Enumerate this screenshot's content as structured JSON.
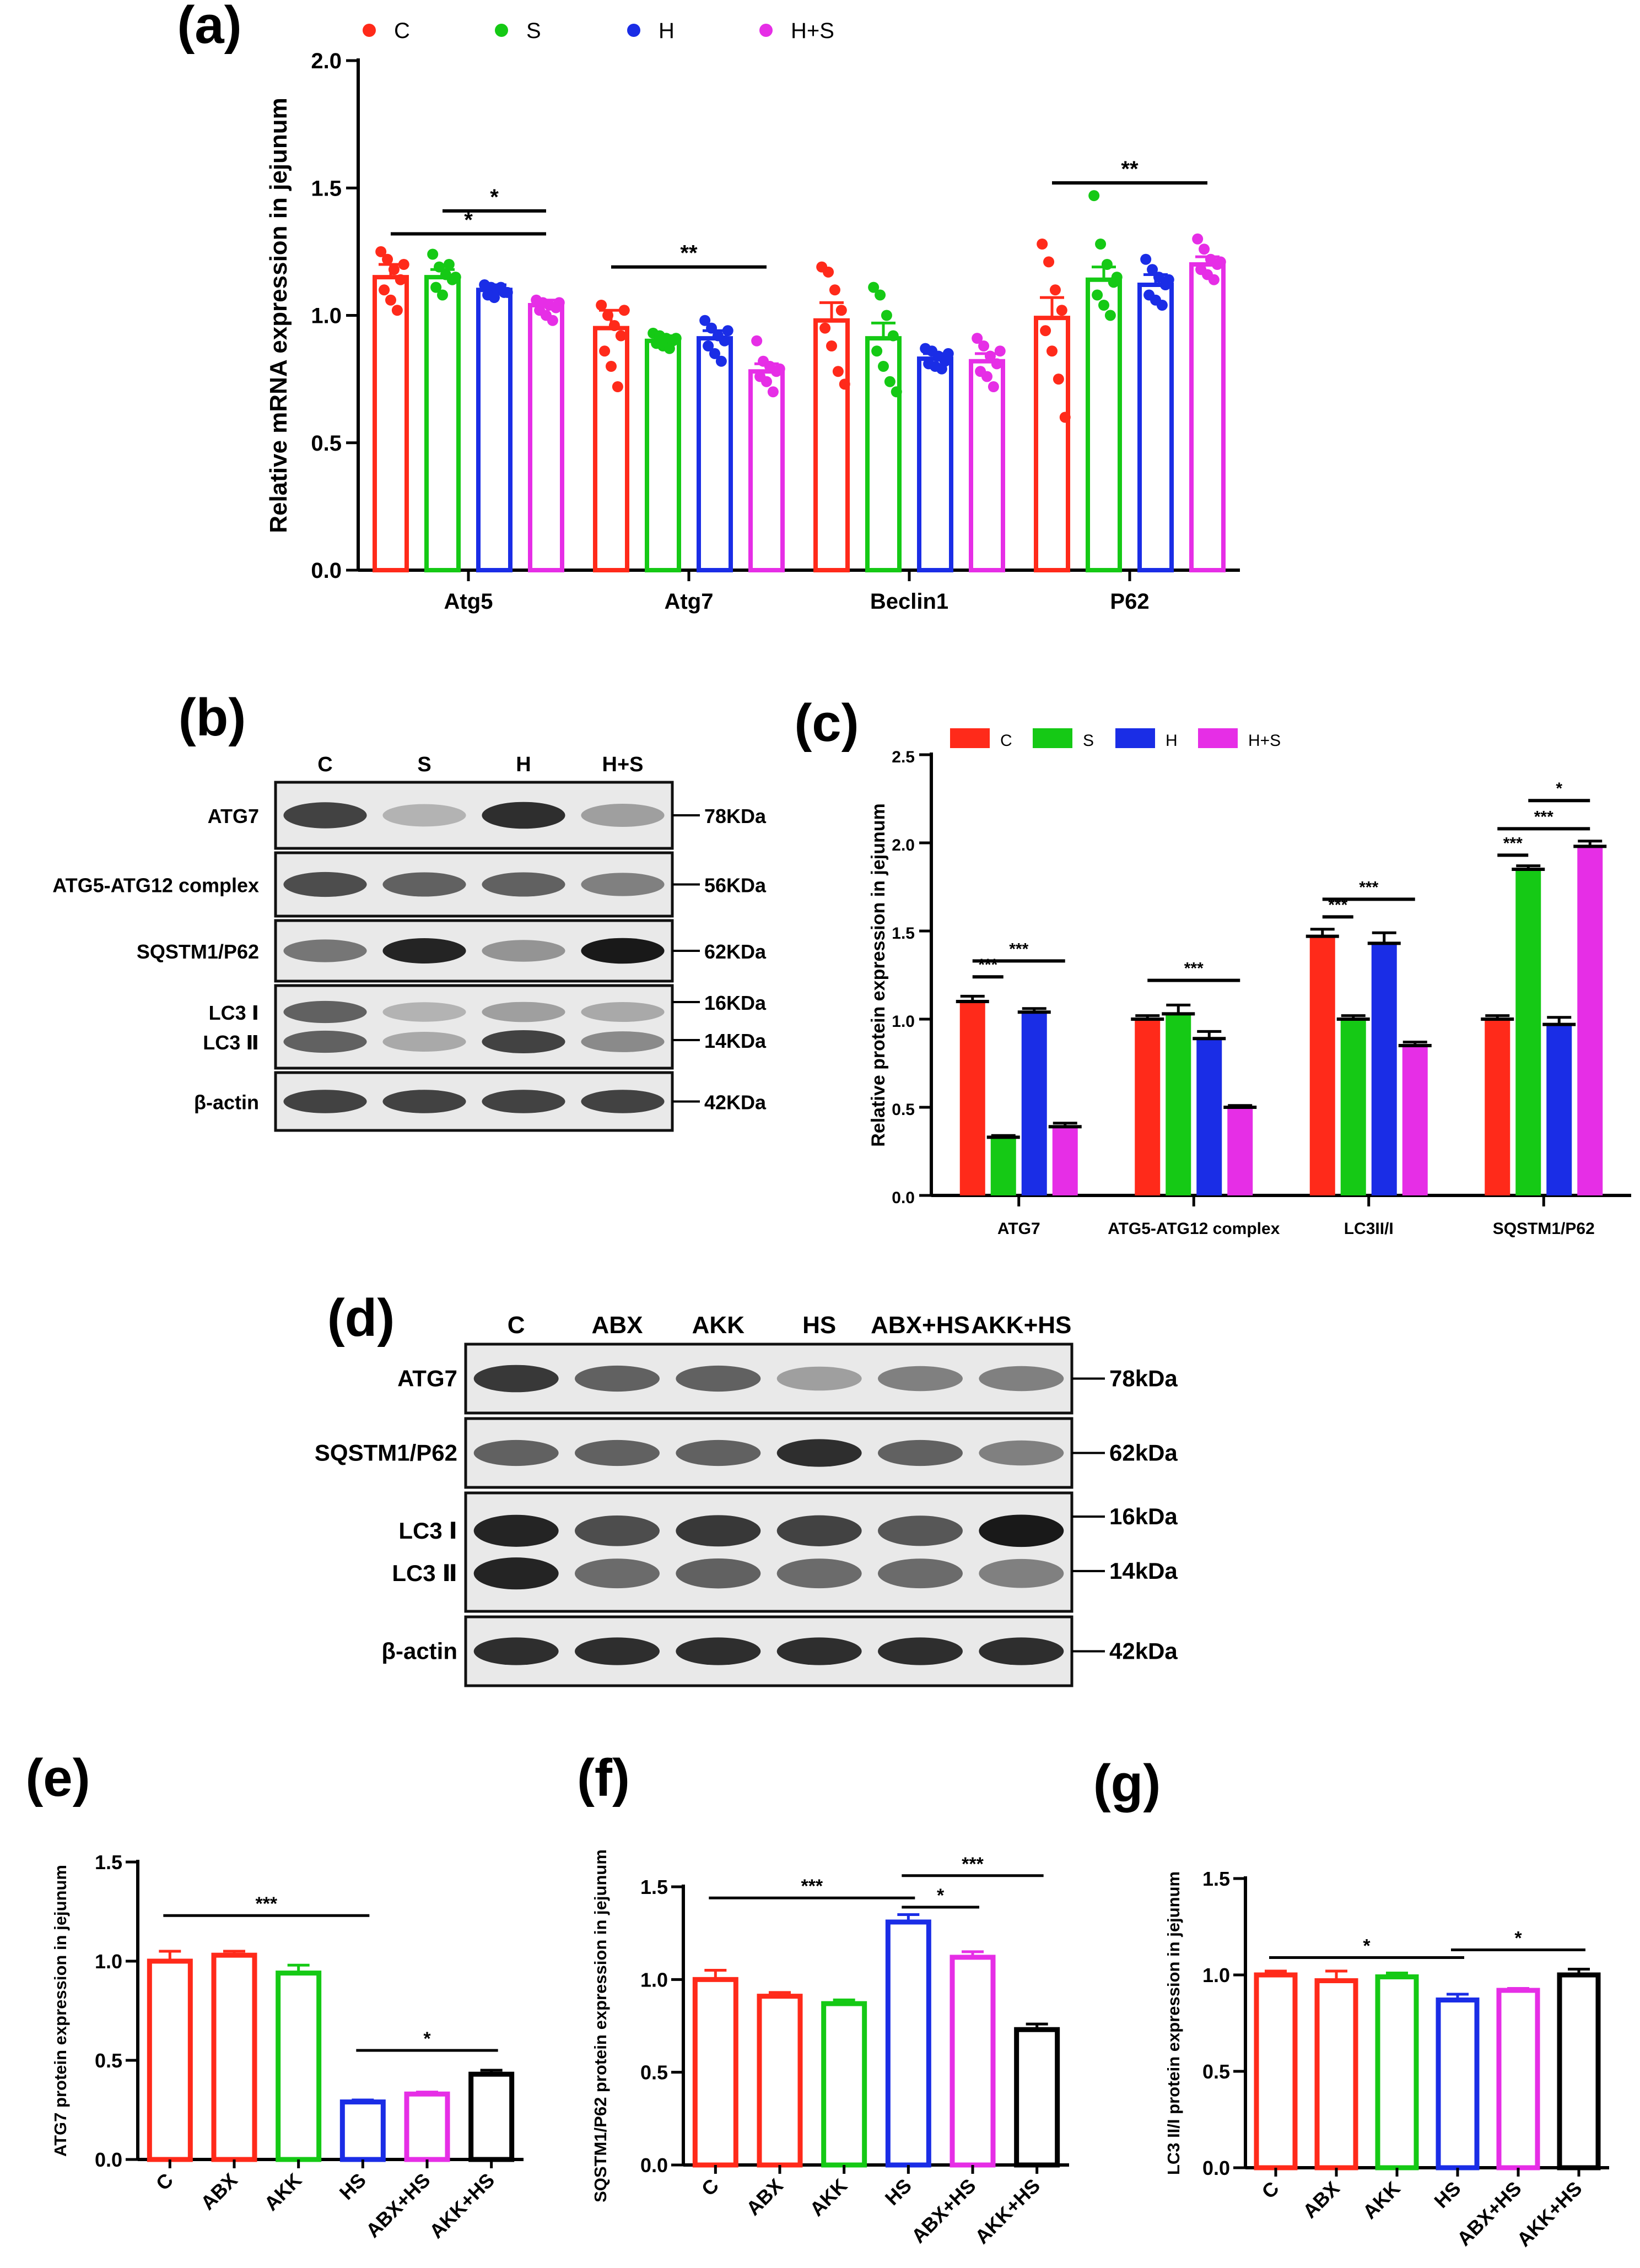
{
  "colors": {
    "C": "#ff2a1a",
    "S": "#15c915",
    "H": "#1a2de6",
    "HS": "#e62ee6",
    "ABX": "#ff2a1a",
    "AKK": "#15c915",
    "AKKHS": "#000000",
    "axis": "#000000"
  },
  "panel_labels": {
    "a": "(a)",
    "b": "(b)",
    "c": "(c)",
    "d": "(d)",
    "e": "(e)",
    "f": "(f)",
    "g": "(g)"
  },
  "chart_data": [
    {
      "id": "a",
      "type": "bar",
      "title": "",
      "xlabel": "",
      "ylabel": "Relative mRNA expression in jejunum",
      "ylim": [
        0,
        2.0
      ],
      "yticks": [
        "0.0",
        "0.5",
        "1.0",
        "1.5",
        "2.0"
      ],
      "legend_position": "top",
      "categories": [
        "Atg5",
        "Atg7",
        "Beclin1",
        "P62"
      ],
      "series": [
        {
          "name": "C",
          "color_key": "C",
          "values": [
            1.15,
            0.95,
            0.98,
            0.99
          ],
          "errors": [
            0.05,
            0.07,
            0.07,
            0.08
          ],
          "points": [
            [
              1.25,
              1.22,
              1.18,
              1.14,
              1.1,
              1.06,
              1.02,
              1.2
            ],
            [
              1.04,
              1.0,
              0.96,
              0.92,
              0.86,
              0.8,
              0.72,
              1.02
            ],
            [
              1.19,
              1.17,
              1.1,
              1.02,
              0.95,
              0.88,
              0.78,
              0.73
            ],
            [
              1.28,
              1.21,
              1.1,
              1.02,
              0.94,
              0.86,
              0.75,
              0.6
            ]
          ]
        },
        {
          "name": "S",
          "color_key": "S",
          "values": [
            1.15,
            0.9,
            0.91,
            1.14
          ],
          "errors": [
            0.03,
            0.02,
            0.06,
            0.05
          ],
          "points": [
            [
              1.24,
              1.19,
              1.16,
              1.14,
              1.11,
              1.08,
              1.2,
              1.15
            ],
            [
              0.93,
              0.92,
              0.91,
              0.9,
              0.89,
              0.88,
              0.87,
              0.91
            ],
            [
              1.11,
              1.08,
              1.0,
              0.92,
              0.86,
              0.8,
              0.74,
              0.7
            ],
            [
              1.47,
              1.28,
              1.2,
              1.13,
              1.08,
              1.04,
              1.0,
              1.15
            ]
          ]
        },
        {
          "name": "H",
          "color_key": "H",
          "values": [
            1.1,
            0.91,
            0.83,
            1.12
          ],
          "errors": [
            0.02,
            0.03,
            0.02,
            0.04
          ],
          "points": [
            [
              1.12,
              1.11,
              1.1,
              1.09,
              1.08,
              1.07,
              1.11,
              1.09
            ],
            [
              0.98,
              0.95,
              0.92,
              0.9,
              0.88,
              0.85,
              0.82,
              0.94
            ],
            [
              0.87,
              0.86,
              0.84,
              0.82,
              0.81,
              0.8,
              0.79,
              0.85
            ],
            [
              1.22,
              1.18,
              1.15,
              1.12,
              1.08,
              1.06,
              1.04,
              1.14
            ]
          ]
        },
        {
          "name": "H+S",
          "color_key": "HS",
          "values": [
            1.04,
            0.78,
            0.82,
            1.2
          ],
          "errors": [
            0.02,
            0.03,
            0.03,
            0.03
          ],
          "points": [
            [
              1.06,
              1.05,
              1.04,
              1.03,
              1.02,
              1.0,
              0.98,
              1.05
            ],
            [
              0.9,
              0.82,
              0.8,
              0.78,
              0.76,
              0.74,
              0.7,
              0.79
            ],
            [
              0.91,
              0.88,
              0.84,
              0.81,
              0.78,
              0.76,
              0.72,
              0.86
            ],
            [
              1.3,
              1.26,
              1.22,
              1.2,
              1.18,
              1.16,
              1.14,
              1.21
            ]
          ]
        }
      ],
      "annotations": [
        {
          "text": "*",
          "cat_from": 0,
          "ser_from": 1,
          "cat_to": 0,
          "ser_to": 3,
          "y": 1.41
        },
        {
          "text": "*",
          "cat_from": 0,
          "ser_from": 0,
          "cat_to": 0,
          "ser_to": 3,
          "y": 1.32
        },
        {
          "text": "**",
          "cat_from": 1,
          "ser_from": 0,
          "cat_to": 1,
          "ser_to": 3,
          "y": 1.19
        },
        {
          "text": "**",
          "cat_from": 3,
          "ser_from": 0,
          "cat_to": 3,
          "ser_to": 3,
          "y": 1.52
        }
      ]
    },
    {
      "id": "c",
      "type": "bar",
      "title": "",
      "xlabel": "",
      "ylabel": "Relative protein expression in jejunum",
      "ylim": [
        0,
        2.5
      ],
      "yticks": [
        "0.0",
        "0.5",
        "1.0",
        "1.5",
        "2.0",
        "2.5"
      ],
      "legend_position": "top",
      "categories": [
        "ATG7",
        "ATG5-ATG12 complex",
        "LC3II/I",
        "SQSTM1/P62"
      ],
      "series": [
        {
          "name": "C",
          "color_key": "C",
          "values": [
            1.1,
            1.0,
            1.47,
            1.0
          ],
          "errors": [
            0.03,
            0.02,
            0.04,
            0.02
          ]
        },
        {
          "name": "S",
          "color_key": "S",
          "values": [
            0.33,
            1.03,
            1.0,
            1.85
          ],
          "errors": [
            0.01,
            0.05,
            0.02,
            0.02
          ]
        },
        {
          "name": "H",
          "color_key": "H",
          "values": [
            1.04,
            0.89,
            1.43,
            0.97
          ],
          "errors": [
            0.02,
            0.04,
            0.06,
            0.04
          ]
        },
        {
          "name": "H+S",
          "color_key": "HS",
          "values": [
            0.39,
            0.5,
            0.85,
            1.98
          ],
          "errors": [
            0.02,
            0.01,
            0.02,
            0.03
          ]
        }
      ],
      "annotations": [
        {
          "text": "***",
          "cat_from": 0,
          "ser_from": 0,
          "cat_to": 0,
          "ser_to": 1,
          "y": 1.24
        },
        {
          "text": "***",
          "cat_from": 0,
          "ser_from": 0,
          "cat_to": 0,
          "ser_to": 3,
          "y": 1.33
        },
        {
          "text": "***",
          "cat_from": 1,
          "ser_from": 0,
          "cat_to": 1,
          "ser_to": 3,
          "y": 1.22
        },
        {
          "text": "***",
          "cat_from": 2,
          "ser_from": 0,
          "cat_to": 2,
          "ser_to": 1,
          "y": 1.58
        },
        {
          "text": "***",
          "cat_from": 2,
          "ser_from": 0,
          "cat_to": 2,
          "ser_to": 3,
          "y": 1.68
        },
        {
          "text": "***",
          "cat_from": 3,
          "ser_from": 0,
          "cat_to": 3,
          "ser_to": 1,
          "y": 1.93
        },
        {
          "text": "***",
          "cat_from": 3,
          "ser_from": 0,
          "cat_to": 3,
          "ser_to": 3,
          "y": 2.08
        },
        {
          "text": "*",
          "cat_from": 3,
          "ser_from": 1,
          "cat_to": 3,
          "ser_to": 3,
          "y": 2.24
        }
      ]
    },
    {
      "id": "e",
      "type": "bar",
      "ylabel": "ATG7 protein expression in jejunum",
      "ylim": [
        0,
        1.5
      ],
      "yticks": [
        "0.0",
        "0.5",
        "1.0",
        "1.5"
      ],
      "categories": [
        "C",
        "ABX",
        "AKK",
        "HS",
        "ABX+HS",
        "AKK+HS"
      ],
      "values": [
        1.0,
        1.03,
        0.94,
        0.29,
        0.33,
        0.43
      ],
      "errors": [
        0.05,
        0.02,
        0.04,
        0.01,
        0.01,
        0.02
      ],
      "color_keys": [
        "C",
        "ABX",
        "AKK",
        "H",
        "HS",
        "AKKHS"
      ],
      "annotations": [
        {
          "text": "***",
          "from": 0,
          "to": 3,
          "y": 1.23
        },
        {
          "text": "*",
          "from": 3,
          "to": 5,
          "y": 0.55
        }
      ]
    },
    {
      "id": "f",
      "type": "bar",
      "ylabel": "SQSTM1/P62 protein expression in jejunum",
      "ylim": [
        0,
        1.5
      ],
      "yticks": [
        "0.0",
        "0.5",
        "1.0",
        "1.5"
      ],
      "categories": [
        "C",
        "ABX",
        "AKK",
        "HS",
        "ABX+HS",
        "AKK+HS"
      ],
      "values": [
        1.0,
        0.91,
        0.87,
        1.31,
        1.12,
        0.73
      ],
      "errors": [
        0.05,
        0.02,
        0.02,
        0.04,
        0.03,
        0.03
      ],
      "color_keys": [
        "C",
        "ABX",
        "AKK",
        "H",
        "HS",
        "AKKHS"
      ],
      "annotations": [
        {
          "text": "***",
          "from": 0,
          "to": 3,
          "y": 1.44
        },
        {
          "text": "*",
          "from": 3,
          "to": 4,
          "y": 1.39
        },
        {
          "text": "***",
          "from": 3,
          "to": 5,
          "y": 1.56
        }
      ]
    },
    {
      "id": "g",
      "type": "bar",
      "ylabel": "LC3 II/I protein expression in jejunum",
      "ylim": [
        0,
        1.5
      ],
      "yticks": [
        "0.0",
        "0.5",
        "1.0",
        "1.5"
      ],
      "categories": [
        "C",
        "ABX",
        "AKK",
        "HS",
        "ABX+HS",
        "AKK+HS"
      ],
      "values": [
        1.0,
        0.97,
        0.99,
        0.87,
        0.92,
        1.0
      ],
      "errors": [
        0.02,
        0.05,
        0.02,
        0.03,
        0.01,
        0.03
      ],
      "color_keys": [
        "C",
        "ABX",
        "AKK",
        "H",
        "HS",
        "AKKHS"
      ],
      "annotations": [
        {
          "text": "*",
          "from": 0,
          "to": 3,
          "y": 1.09
        },
        {
          "text": "*",
          "from": 3,
          "to": 5,
          "y": 1.13
        }
      ]
    }
  ],
  "blot_b": {
    "lanes": [
      "C",
      "S",
      "H",
      "H+S"
    ],
    "rows": [
      {
        "label": "ATG7",
        "markers": [
          "78KDa"
        ],
        "intensities": [
          0.75,
          0.2,
          0.85,
          0.3
        ]
      },
      {
        "label": "ATG5-ATG12 complex",
        "markers": [
          "56KDa"
        ],
        "intensities": [
          0.7,
          0.6,
          0.6,
          0.45
        ]
      },
      {
        "label": "SQSTM1/P62",
        "markers": [
          "62KDa"
        ],
        "intensities": [
          0.5,
          0.9,
          0.35,
          0.95
        ]
      },
      {
        "label1": "LC3 Ⅰ",
        "label2": "LC3 Ⅱ",
        "markers": [
          "16KDa",
          "14KDa"
        ],
        "intensities": [
          0.6,
          0.2,
          0.3,
          0.25
        ],
        "intensities2": [
          0.6,
          0.25,
          0.75,
          0.4
        ]
      },
      {
        "label": "β-actin",
        "markers": [
          "42KDa"
        ],
        "intensities": [
          0.75,
          0.75,
          0.75,
          0.75
        ]
      }
    ]
  },
  "blot_d": {
    "lanes": [
      "C",
      "ABX",
      "AKK",
      "HS",
      "ABX+HS",
      "AKK+HS"
    ],
    "rows": [
      {
        "label": "ATG7",
        "markers": [
          "78kDa"
        ],
        "intensities": [
          0.8,
          0.6,
          0.6,
          0.3,
          0.45,
          0.45
        ]
      },
      {
        "label": "SQSTM1/P62",
        "markers": [
          "62kDa"
        ],
        "intensities": [
          0.6,
          0.6,
          0.6,
          0.85,
          0.6,
          0.45
        ]
      },
      {
        "label1": "LC3 Ⅰ",
        "label2": "LC3 Ⅱ",
        "markers": [
          "16kDa",
          "14kDa"
        ],
        "intensities": [
          0.9,
          0.7,
          0.8,
          0.75,
          0.65,
          0.95
        ],
        "intensities2": [
          0.9,
          0.55,
          0.6,
          0.55,
          0.55,
          0.45
        ]
      },
      {
        "label": "β-actin",
        "markers": [
          "42kDa"
        ],
        "intensities": [
          0.85,
          0.85,
          0.85,
          0.85,
          0.85,
          0.85
        ]
      }
    ]
  }
}
